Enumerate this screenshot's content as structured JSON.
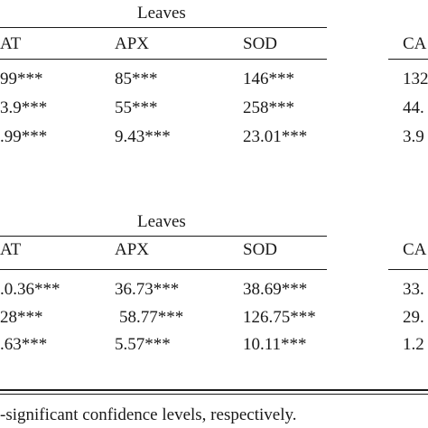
{
  "blocks": [
    {
      "group_label": "Leaves",
      "columns": [
        "AT",
        "APX",
        "SOD",
        "CA"
      ],
      "rows": [
        [
          "99***",
          "85***",
          "146***",
          "132"
        ],
        [
          "3.9***",
          "55***",
          "258***",
          "44."
        ],
        [
          ".99***",
          "9.43***",
          "23.01***",
          "3.9"
        ]
      ]
    },
    {
      "group_label": "Leaves",
      "columns": [
        "AT",
        "APX",
        "SOD",
        "CA"
      ],
      "rows": [
        [
          ".0.36***",
          "36.73***",
          "38.69***",
          "33."
        ],
        [
          "28***",
          "58.77***",
          "126.75***",
          "29."
        ],
        [
          ".63***",
          "5.57***",
          "10.11***",
          "1.2"
        ]
      ]
    }
  ],
  "footnote": "-significant confidence levels, respectively."
}
